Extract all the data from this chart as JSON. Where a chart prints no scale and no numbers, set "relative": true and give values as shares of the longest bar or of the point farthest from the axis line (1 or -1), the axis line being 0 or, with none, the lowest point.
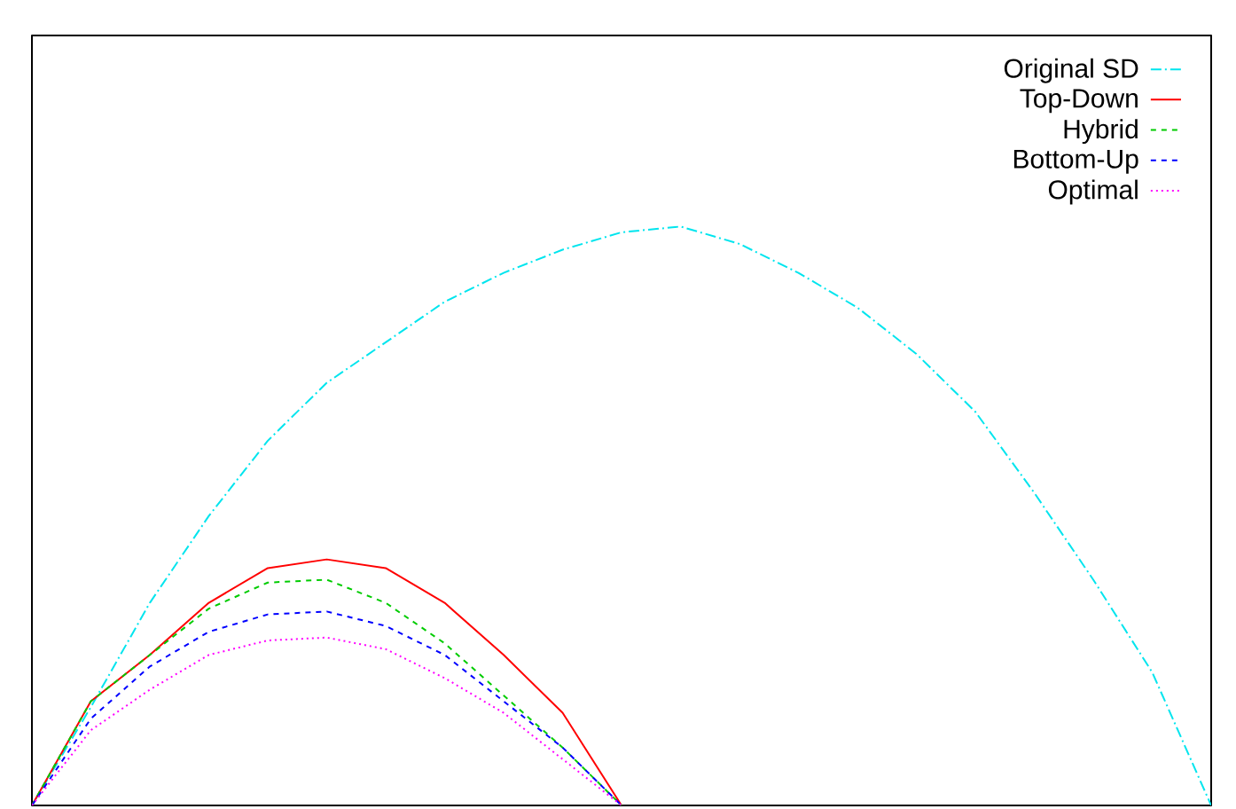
{
  "chart_data": {
    "type": "line",
    "relative": true,
    "legend": "top right",
    "categories": [
      null,
      null,
      null,
      null,
      null,
      null,
      null,
      null,
      null,
      null,
      null,
      null,
      null,
      null,
      null,
      null,
      null,
      null,
      null,
      null,
      null
    ],
    "series": [
      {
        "name": "Original SD",
        "color": "#00e5ee",
        "line_style": "dashdot",
        "values": [
          0,
          0.17,
          0.35,
          0.5,
          0.63,
          0.73,
          0.8,
          0.87,
          0.92,
          0.96,
          0.99,
          1.0,
          0.97,
          0.92,
          0.86,
          0.78,
          0.68,
          0.54,
          0.39,
          0.23,
          0
        ]
      },
      {
        "name": "Top-Down",
        "color": "#ff0000",
        "line_style": "solid",
        "values": [
          0,
          0.18,
          0.26,
          0.35,
          0.41,
          0.425,
          0.41,
          0.35,
          0.26,
          0.16,
          0,
          null,
          null,
          null,
          null,
          null,
          null,
          null,
          null,
          null,
          null
        ]
      },
      {
        "name": "Hybrid",
        "color": "#00cc00",
        "line_style": "dashed",
        "values": [
          0,
          0.18,
          0.26,
          0.34,
          0.385,
          0.39,
          0.35,
          0.28,
          0.19,
          0.1,
          0,
          null,
          null,
          null,
          null,
          null,
          null,
          null,
          null,
          null,
          null
        ]
      },
      {
        "name": "Bottom-Up",
        "color": "#0000ff",
        "line_style": "dashed",
        "values": [
          0,
          0.15,
          0.24,
          0.3,
          0.33,
          0.335,
          0.31,
          0.26,
          0.18,
          0.1,
          0,
          null,
          null,
          null,
          null,
          null,
          null,
          null,
          null,
          null,
          null
        ]
      },
      {
        "name": "Optimal",
        "color": "#ff00ff",
        "line_style": "dotted",
        "values": [
          0,
          0.13,
          0.2,
          0.26,
          0.285,
          0.29,
          0.27,
          0.22,
          0.16,
          0.08,
          0,
          null,
          null,
          null,
          null,
          null,
          null,
          null,
          null,
          null,
          null
        ]
      }
    ]
  }
}
